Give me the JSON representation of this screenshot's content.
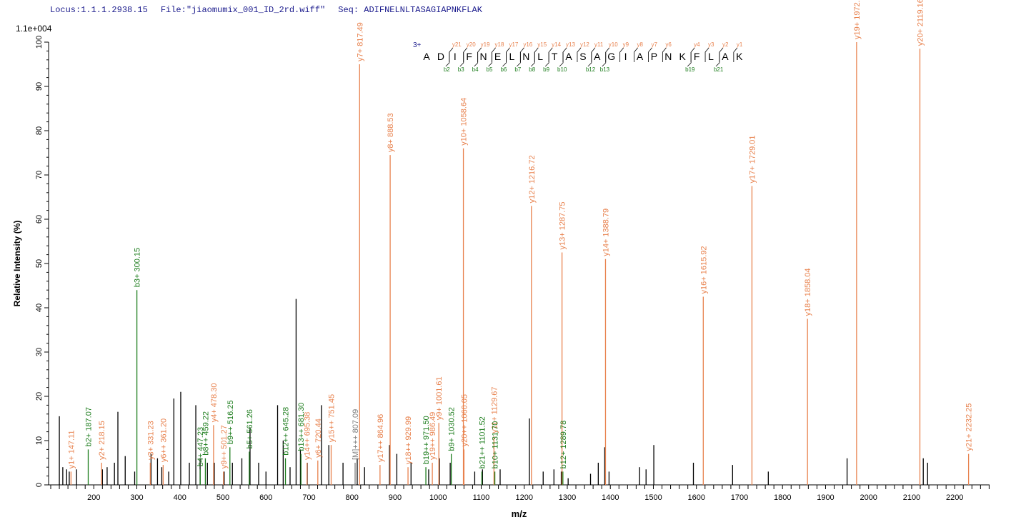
{
  "header": {
    "locus": "Locus:1.1.1.2938.15",
    "file": "File:\"jiaomumix_001_ID_2rd.wiff\"",
    "seq": "Seq: ADIFNELNLTASAGIAPNKFLAK"
  },
  "colors": {
    "y_ion": "#e8824e",
    "b_ion": "#1d7d1d",
    "other": "#000000",
    "precursor": "#808080",
    "charge": "#1a1a8c"
  },
  "chart_data": {
    "type": "bar",
    "title": "",
    "scale_label": "1.1e+004",
    "xlabel": "m/z",
    "ylabel": "Relative   Intensity (%)",
    "xlim": [
      95,
      2281
    ],
    "ylim": [
      0,
      100
    ],
    "x_ticks": [
      200,
      300,
      400,
      500,
      600,
      700,
      800,
      900,
      1000,
      1100,
      1200,
      1300,
      1400,
      1500,
      1600,
      1700,
      1800,
      1900,
      2000,
      2100,
      2200
    ],
    "y_ticks": [
      0,
      10,
      20,
      30,
      40,
      50,
      60,
      70,
      80,
      90,
      100
    ],
    "annotated_peaks": [
      {
        "mz": 147.11,
        "i": 3,
        "type": "y",
        "label": "y1+ 147.11"
      },
      {
        "mz": 187.07,
        "i": 8,
        "type": "b",
        "label": "b2+ 187.07"
      },
      {
        "mz": 218.15,
        "i": 5,
        "type": "y",
        "label": "y2+ 218.15"
      },
      {
        "mz": 300.15,
        "i": 44,
        "type": "b",
        "label": "b3+ 300.15"
      },
      {
        "mz": 331.23,
        "i": 5,
        "type": "y",
        "label": "y3+ 331.23"
      },
      {
        "mz": 361.2,
        "i": 4.5,
        "type": "y",
        "label": "y6++ 361.20"
      },
      {
        "mz": 447.23,
        "i": 3.5,
        "type": "b",
        "label": "b4+ 447.23"
      },
      {
        "mz": 459.22,
        "i": 6,
        "type": "b",
        "label": "b8++ 459.22"
      },
      {
        "mz": 478.3,
        "i": 13.5,
        "type": "y",
        "label": "y4+ 478.30"
      },
      {
        "mz": 501.27,
        "i": 3,
        "type": "y",
        "label": "y9++ 501.27"
      },
      {
        "mz": 516.25,
        "i": 8.5,
        "type": "b",
        "label": "b9++ 516.25"
      },
      {
        "mz": 561.26,
        "i": 7.5,
        "type": "b",
        "label": "b5+ 561.26"
      },
      {
        "mz": 645.28,
        "i": 6,
        "type": "b",
        "label": "b12++ 645.28"
      },
      {
        "mz": 681.3,
        "i": 7,
        "type": "b",
        "label": "b13++ 681.30"
      },
      {
        "mz": 695.38,
        "i": 5,
        "type": "y",
        "label": "y14++ 695.38"
      },
      {
        "mz": 720.44,
        "i": 5.5,
        "type": "y",
        "label": "y6+ 720.44"
      },
      {
        "mz": 751.45,
        "i": 9,
        "type": "y",
        "label": "y15++ 751.45"
      },
      {
        "mz": 807.09,
        "i": 5,
        "type": "m",
        "label": "[M]+++ 807.09"
      },
      {
        "mz": 817.49,
        "i": 95,
        "type": "y",
        "label": "y7+ 817.49"
      },
      {
        "mz": 864.96,
        "i": 4.5,
        "type": "y",
        "label": "y17++ 864.96"
      },
      {
        "mz": 888.53,
        "i": 74.5,
        "type": "y",
        "label": "y8+ 888.53"
      },
      {
        "mz": 929.99,
        "i": 4,
        "type": "y",
        "label": "y18++ 929.99"
      },
      {
        "mz": 971.5,
        "i": 4,
        "type": "b",
        "label": "b19++ 971.50"
      },
      {
        "mz": 986.49,
        "i": 5,
        "type": "y",
        "label": "y19++ 986.49"
      },
      {
        "mz": 1001.61,
        "i": 14,
        "type": "y",
        "label": "y9+ 1001.61"
      },
      {
        "mz": 1030.52,
        "i": 7,
        "type": "b",
        "label": "b9+ 1030.52"
      },
      {
        "mz": 1058.64,
        "i": 76,
        "type": "y",
        "label": "y10+ 1058.64"
      },
      {
        "mz": 1060.05,
        "i": 8,
        "type": "y",
        "label": "y20++ 1060.05"
      },
      {
        "mz": 1101.52,
        "i": 3,
        "type": "b",
        "label": "b21++ 1101.52"
      },
      {
        "mz": 1129.67,
        "i": 11,
        "type": "y",
        "label": "y11+ 1129.67"
      },
      {
        "mz": 1131.7,
        "i": 3,
        "type": "b",
        "label": "b10+ 1131.70"
      },
      {
        "mz": 1216.72,
        "i": 63,
        "type": "y",
        "label": "y12+ 1216.72"
      },
      {
        "mz": 1287.75,
        "i": 52.5,
        "type": "y",
        "label": "y13+ 1287.75"
      },
      {
        "mz": 1289.78,
        "i": 3,
        "type": "b",
        "label": "b12+ 1289.78"
      },
      {
        "mz": 1388.79,
        "i": 51,
        "type": "y",
        "label": "y14+ 1388.79"
      },
      {
        "mz": 1615.92,
        "i": 42.5,
        "type": "y",
        "label": "y16+ 1615.92"
      },
      {
        "mz": 1729.01,
        "i": 67.5,
        "type": "y",
        "label": "y17+ 1729.01"
      },
      {
        "mz": 1858.04,
        "i": 37.5,
        "type": "y",
        "label": "y18+ 1858.04"
      },
      {
        "mz": 1972.09,
        "i": 100,
        "type": "y",
        "label": "y19+ 1972.09"
      },
      {
        "mz": 2119.16,
        "i": 98.5,
        "type": "y",
        "label": "y20+ 2119.16"
      },
      {
        "mz": 2232.25,
        "i": 7,
        "type": "y",
        "label": "y21+ 2232.25"
      }
    ],
    "other_peaks": [
      [
        120,
        15.5
      ],
      [
        128,
        4
      ],
      [
        137,
        3.5
      ],
      [
        143,
        3
      ],
      [
        160,
        3.5
      ],
      [
        220,
        3.5
      ],
      [
        231,
        4
      ],
      [
        248,
        5
      ],
      [
        256,
        16.5
      ],
      [
        273,
        6.5
      ],
      [
        295,
        3
      ],
      [
        333,
        7
      ],
      [
        348,
        6
      ],
      [
        358,
        4
      ],
      [
        374,
        3
      ],
      [
        386,
        19.5
      ],
      [
        402,
        21
      ],
      [
        422,
        5
      ],
      [
        437,
        18
      ],
      [
        447,
        6
      ],
      [
        464,
        5
      ],
      [
        480,
        5
      ],
      [
        503,
        3
      ],
      [
        522,
        5
      ],
      [
        544,
        6
      ],
      [
        563,
        13
      ],
      [
        583,
        5
      ],
      [
        600,
        3
      ],
      [
        627,
        18
      ],
      [
        640,
        10
      ],
      [
        656,
        4
      ],
      [
        670,
        42
      ],
      [
        680,
        8
      ],
      [
        696,
        5
      ],
      [
        729,
        18
      ],
      [
        746,
        9
      ],
      [
        779,
        5
      ],
      [
        812,
        6
      ],
      [
        829,
        4
      ],
      [
        887,
        9
      ],
      [
        904,
        7
      ],
      [
        937,
        5
      ],
      [
        978,
        3.5
      ],
      [
        1003,
        6
      ],
      [
        1028,
        5
      ],
      [
        1085,
        3
      ],
      [
        1103,
        3.5
      ],
      [
        1144,
        3.5
      ],
      [
        1212,
        15
      ],
      [
        1244,
        3
      ],
      [
        1269,
        3.5
      ],
      [
        1286,
        3
      ],
      [
        1302,
        1.5
      ],
      [
        1354,
        2.5
      ],
      [
        1372,
        5
      ],
      [
        1387,
        8.5
      ],
      [
        1397,
        3
      ],
      [
        1468,
        4
      ],
      [
        1483,
        3.5
      ],
      [
        1501,
        9
      ],
      [
        1593,
        5
      ],
      [
        1684,
        4.5
      ],
      [
        1767,
        3
      ],
      [
        1950,
        6
      ],
      [
        2127,
        6
      ],
      [
        2137,
        5
      ]
    ],
    "sequence": {
      "charge": "3+",
      "residues": [
        "A",
        "D",
        "I",
        "F",
        "N",
        "E",
        "L",
        "N",
        "L",
        "T",
        "A",
        "S",
        "A",
        "G",
        "I",
        "A",
        "P",
        "N",
        "K",
        "F",
        "L",
        "A",
        "K"
      ],
      "y_ions": [
        21,
        20,
        19,
        18,
        17,
        16,
        15,
        14,
        13,
        12,
        11,
        10,
        9,
        8,
        7,
        6,
        4,
        3,
        2,
        1
      ],
      "b_ions": [
        2,
        3,
        4,
        5,
        6,
        7,
        8,
        9,
        10,
        12,
        13,
        19,
        21
      ]
    }
  }
}
